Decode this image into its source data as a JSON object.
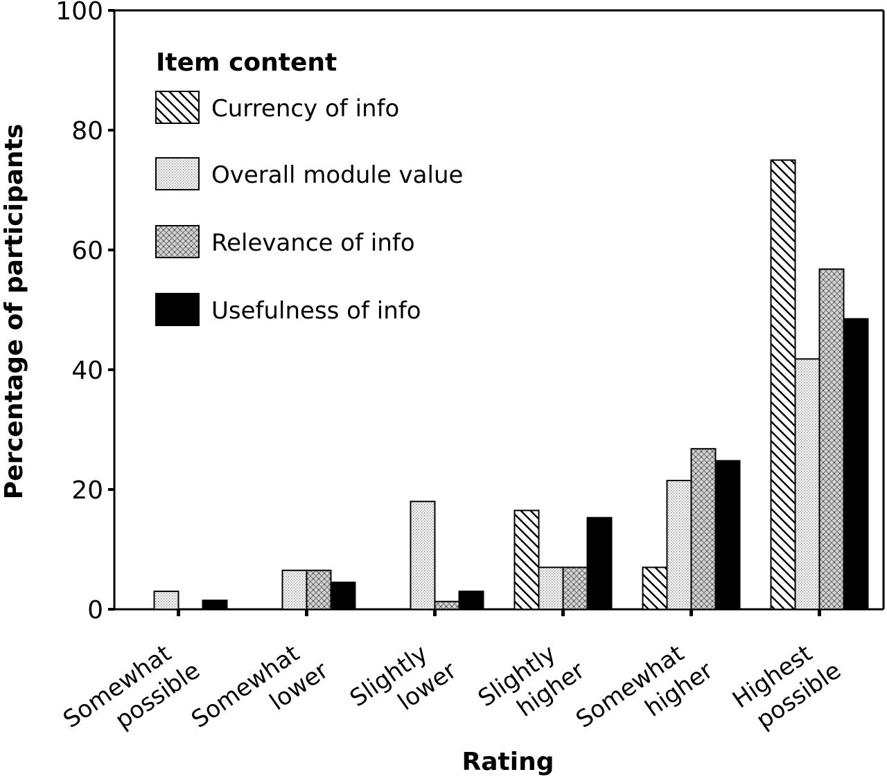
{
  "chart_data": {
    "type": "bar",
    "xlabel": "Rating",
    "ylabel": "Percentage of participants",
    "ylim": [
      0,
      100
    ],
    "yticks": [
      "0",
      "20",
      "40",
      "60",
      "80",
      "100"
    ],
    "categories": [
      {
        "line1": "Somewhat",
        "line2": "possible"
      },
      {
        "line1": "Somewhat",
        "line2": "lower"
      },
      {
        "line1": "Slightly",
        "line2": "lower"
      },
      {
        "line1": "Slightly",
        "line2": "higher"
      },
      {
        "line1": "Somewhat",
        "line2": "higher"
      },
      {
        "line1": "Highest",
        "line2": "possible"
      }
    ],
    "legend": {
      "title": "Item content",
      "placement": "top-left"
    },
    "series": [
      {
        "name": "Currency of info",
        "pattern": "diagonal-hatch",
        "values": [
          0,
          0,
          0,
          16.5,
          7,
          75
        ]
      },
      {
        "name": "Overall module value",
        "pattern": "fine-dots",
        "values": [
          3,
          6.5,
          18,
          7,
          21.5,
          41.8
        ]
      },
      {
        "name": "Relevance of info",
        "pattern": "crosshatch-dots",
        "values": [
          0,
          6.5,
          1.3,
          7,
          26.8,
          56.8
        ]
      },
      {
        "name": "Usefulness of info",
        "pattern": "solid",
        "values": [
          1.5,
          4.5,
          3,
          15.3,
          24.8,
          48.5
        ]
      }
    ],
    "grid": false
  }
}
